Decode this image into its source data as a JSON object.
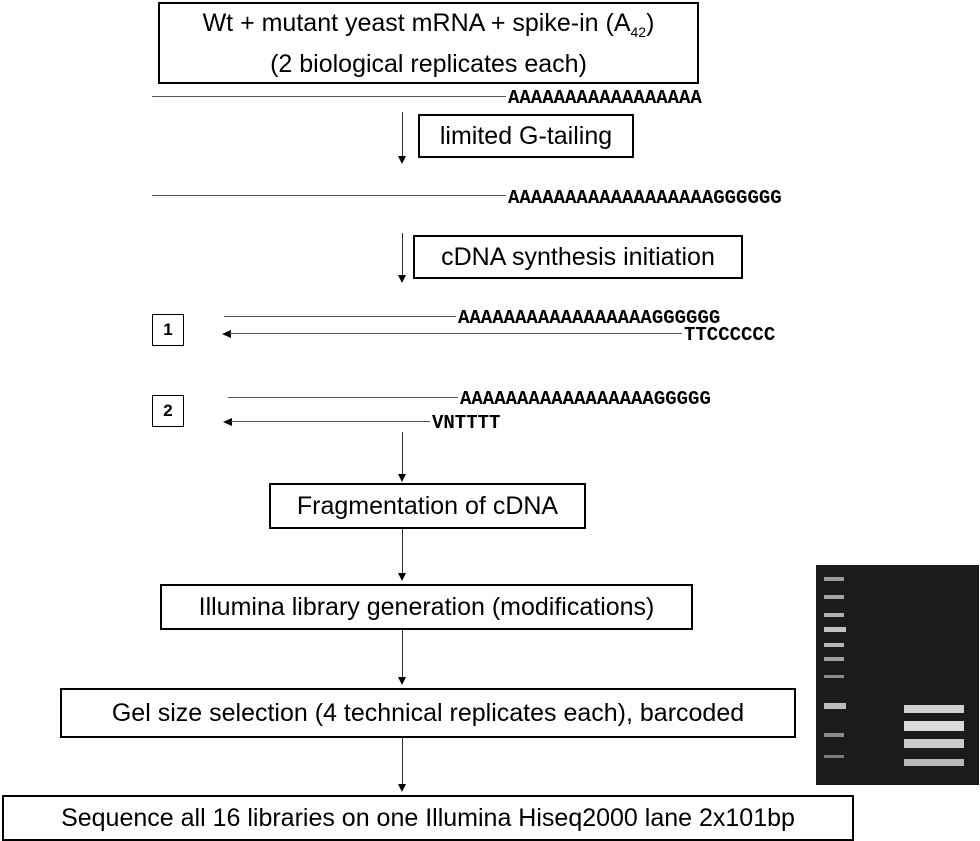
{
  "top_box": {
    "line1_prefix": "Wt + mutant yeast mRNA + spike-in (A",
    "line1_sub": "42",
    "line1_suffix": ")",
    "line2": "(2 biological replicates each)"
  },
  "strand1_seq": "AAAAAAAAAAAAAAAAA",
  "step_g_tailing": "limited G-tailing",
  "strand2_seq": "AAAAAAAAAAAAAAAAAAGGGGGG",
  "step_cdna": "cDNA synthesis initiation",
  "primer1": {
    "number": "1",
    "top_seq": "AAAAAAAAAAAAAAAAAGGGGGG",
    "bottom_seq": "TTCCCCCC"
  },
  "primer2": {
    "number": "2",
    "top_seq": "AAAAAAAAAAAAAAAAAGGGGG",
    "bottom_seq": "VNTTTT"
  },
  "step_fragmentation": "Fragmentation of cDNA",
  "step_library": "Illumina library generation (modifications)",
  "step_gel": "Gel size selection (4 technical replicates each), barcoded",
  "step_sequence": "Sequence all 16 libraries on one Illumina Hiseq2000 lane 2x101bp",
  "colors": {
    "gel_background": "#1b1b1b",
    "gel_band": "#d8d8d8"
  }
}
